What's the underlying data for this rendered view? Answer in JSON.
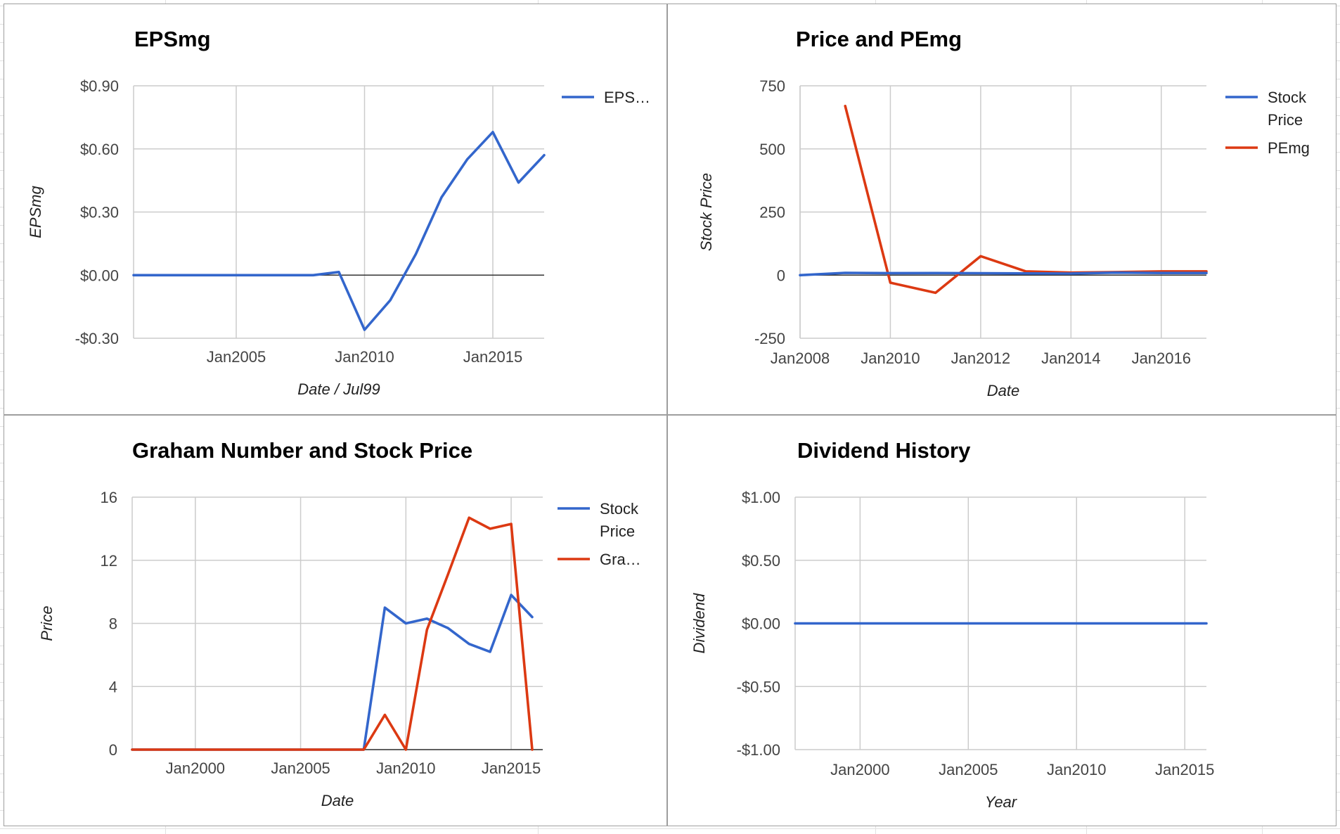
{
  "chart_data": [
    {
      "type": "line",
      "title": "EPSmg",
      "xlabel": "Date / Jul99",
      "ylabel": "EPSmg",
      "xlim": [
        2001,
        2017
      ],
      "ylim": [
        -0.3,
        0.9
      ],
      "x_ticks": [
        2005,
        2010,
        2015
      ],
      "x_tick_labels": [
        "Jan2005",
        "Jan2010",
        "Jan2015"
      ],
      "y_ticks": [
        -0.3,
        0,
        0.3,
        0.6,
        0.9
      ],
      "y_tick_labels": [
        "-$0.30",
        "$0.00",
        "$0.30",
        "$0.60",
        "$0.90"
      ],
      "grid": true,
      "legend": "right",
      "series": [
        {
          "name": "EPS…",
          "color": "#3366cc",
          "x": [
            2001,
            2002,
            2003,
            2004,
            2005,
            2006,
            2007,
            2008,
            2009,
            2010,
            2011,
            2012,
            2013,
            2014,
            2015,
            2016,
            2017
          ],
          "y": [
            0,
            0,
            0,
            0,
            0,
            0,
            0,
            0,
            0.015,
            -0.26,
            -0.12,
            0.1,
            0.37,
            0.55,
            0.68,
            0.44,
            0.57
          ]
        }
      ]
    },
    {
      "type": "line",
      "title": "Price and PEmg",
      "xlabel": "Date",
      "ylabel": "Stock Price",
      "xlim": [
        2008,
        2017
      ],
      "ylim": [
        -250,
        750
      ],
      "x_ticks": [
        2008,
        2010,
        2012,
        2014,
        2016
      ],
      "x_tick_labels": [
        "Jan2008",
        "Jan2010",
        "Jan2012",
        "Jan2014",
        "Jan2016"
      ],
      "y_ticks": [
        -250,
        0,
        250,
        500,
        750
      ],
      "y_tick_labels": [
        "-250",
        "0",
        "250",
        "500",
        "750"
      ],
      "grid": true,
      "legend": "right",
      "series": [
        {
          "name": "Stock Price",
          "color": "#3366cc",
          "x": [
            2008,
            2009,
            2010,
            2011,
            2012,
            2013,
            2014,
            2015,
            2016,
            2017
          ],
          "y": [
            0,
            9,
            8,
            8.3,
            7.7,
            6.7,
            6.2,
            9.8,
            8.4,
            8.4
          ]
        },
        {
          "name": "PEmg",
          "color": "#dc3912",
          "x": [
            2009,
            2010,
            2011,
            2012,
            2013,
            2014,
            2015,
            2016,
            2017
          ],
          "y": [
            670,
            -30,
            -70,
            75,
            15,
            10,
            12,
            15,
            15
          ]
        }
      ]
    },
    {
      "type": "line",
      "title": "Graham Number and Stock Price",
      "xlabel": "Date",
      "ylabel": "Price",
      "xlim": [
        1997,
        2016.5
      ],
      "ylim": [
        0,
        16
      ],
      "x_ticks": [
        2000,
        2005,
        2010,
        2015
      ],
      "x_tick_labels": [
        "Jan2000",
        "Jan2005",
        "Jan2010",
        "Jan2015"
      ],
      "y_ticks": [
        0,
        4,
        8,
        12,
        16
      ],
      "y_tick_labels": [
        "0",
        "4",
        "8",
        "12",
        "16"
      ],
      "grid": true,
      "legend": "right",
      "series": [
        {
          "name": "Stock Price",
          "color": "#3366cc",
          "x": [
            1997,
            2008,
            2009,
            2010,
            2011,
            2012,
            2013,
            2014,
            2015,
            2016
          ],
          "y": [
            0,
            0,
            9,
            8,
            8.3,
            7.7,
            6.7,
            6.2,
            9.8,
            8.4
          ]
        },
        {
          "name": "Gra…",
          "color": "#dc3912",
          "x": [
            1997,
            2008,
            2009,
            2010,
            2011,
            2012,
            2013,
            2014,
            2015,
            2016
          ],
          "y": [
            0,
            0,
            2.2,
            0,
            7.6,
            11.1,
            14.7,
            14,
            14.3,
            0
          ]
        }
      ]
    },
    {
      "type": "line",
      "title": "Dividend History",
      "xlabel": "Year",
      "ylabel": "Dividend",
      "xlim": [
        1997,
        2016
      ],
      "ylim": [
        -1,
        1
      ],
      "x_ticks": [
        2000,
        2005,
        2010,
        2015
      ],
      "x_tick_labels": [
        "Jan2000",
        "Jan2005",
        "Jan2010",
        "Jan2015"
      ],
      "y_ticks": [
        -1,
        -0.5,
        0,
        0.5,
        1
      ],
      "y_tick_labels": [
        "-$1.00",
        "-$0.50",
        "$0.00",
        "$0.50",
        "$1.00"
      ],
      "grid": true,
      "legend": "none",
      "series": [
        {
          "color": "#3366cc",
          "x": [
            1997,
            2016
          ],
          "y": [
            0,
            0
          ]
        }
      ]
    }
  ]
}
